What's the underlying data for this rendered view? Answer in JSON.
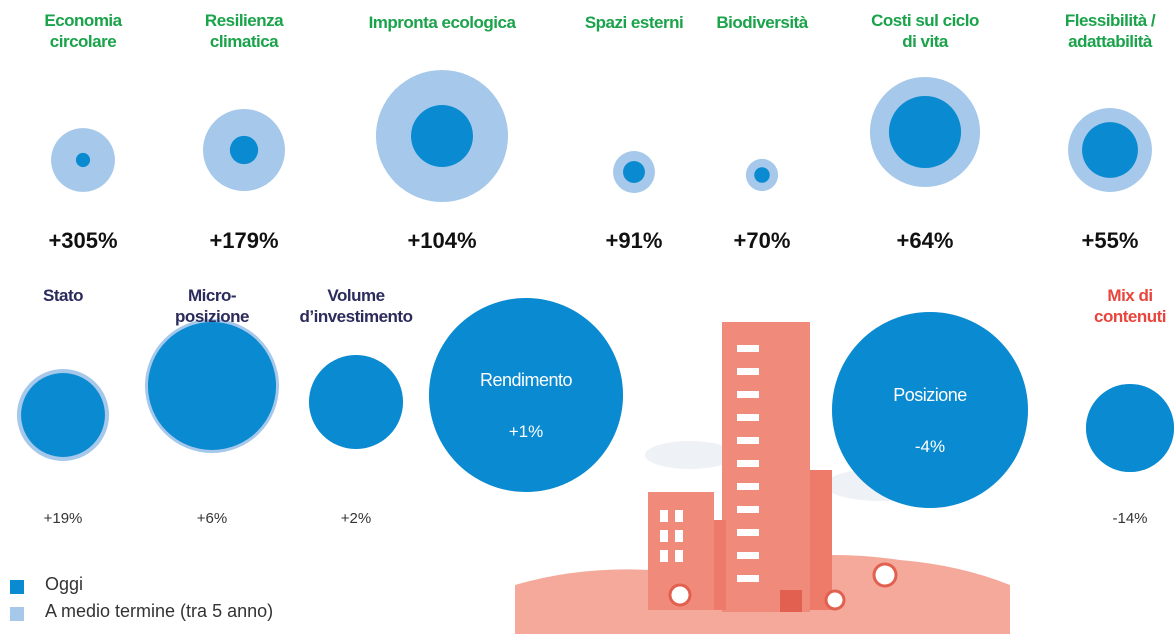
{
  "chart_data": {
    "type": "bubble",
    "categories": [
      "Economia circolare",
      "Resilienza climatica",
      "Impronta ecologica",
      "Spazi esterni",
      "Biodiversità",
      "Costi sul ciclo di vita",
      "Flessibilità / adattabilità",
      "Stato",
      "Micro-posizione",
      "Volume d’investimento",
      "Rendimento",
      "Posizione",
      "Mix di contenuti"
    ],
    "category_colors": [
      "#1aa34a",
      "#1aa34a",
      "#1aa34a",
      "#1aa34a",
      "#1aa34a",
      "#1aa34a",
      "#1aa34a",
      "#2b2b5c",
      "#2b2b5c",
      "#2b2b5c",
      "#ffffff",
      "#ffffff",
      "#e8453c"
    ],
    "series": [
      {
        "name": "Oggi",
        "color": "#0a8bd1",
        "values": [
          5,
          20,
          96,
          12,
          6,
          130,
          78,
          176,
          410,
          221,
          941,
          960,
          194
        ]
      },
      {
        "name": "A medio termine (tra 5 anno)",
        "color": "#a6c8ea",
        "values": [
          102,
          168,
          436,
          44,
          26,
          303,
          176,
          212,
          449,
          221,
          941,
          960,
          194
        ]
      }
    ],
    "change": {
      "values": [
        305,
        179,
        104,
        91,
        70,
        64,
        55,
        19,
        6,
        2,
        1,
        -4,
        -14
      ],
      "value_labels": [
        "+305%",
        "+179%",
        "+104%",
        "+91%",
        "+70%",
        "+64%",
        "+55%",
        "+19%",
        "+6%",
        "+2%",
        "+1%",
        "-4%",
        "-14%"
      ]
    }
  }
}
